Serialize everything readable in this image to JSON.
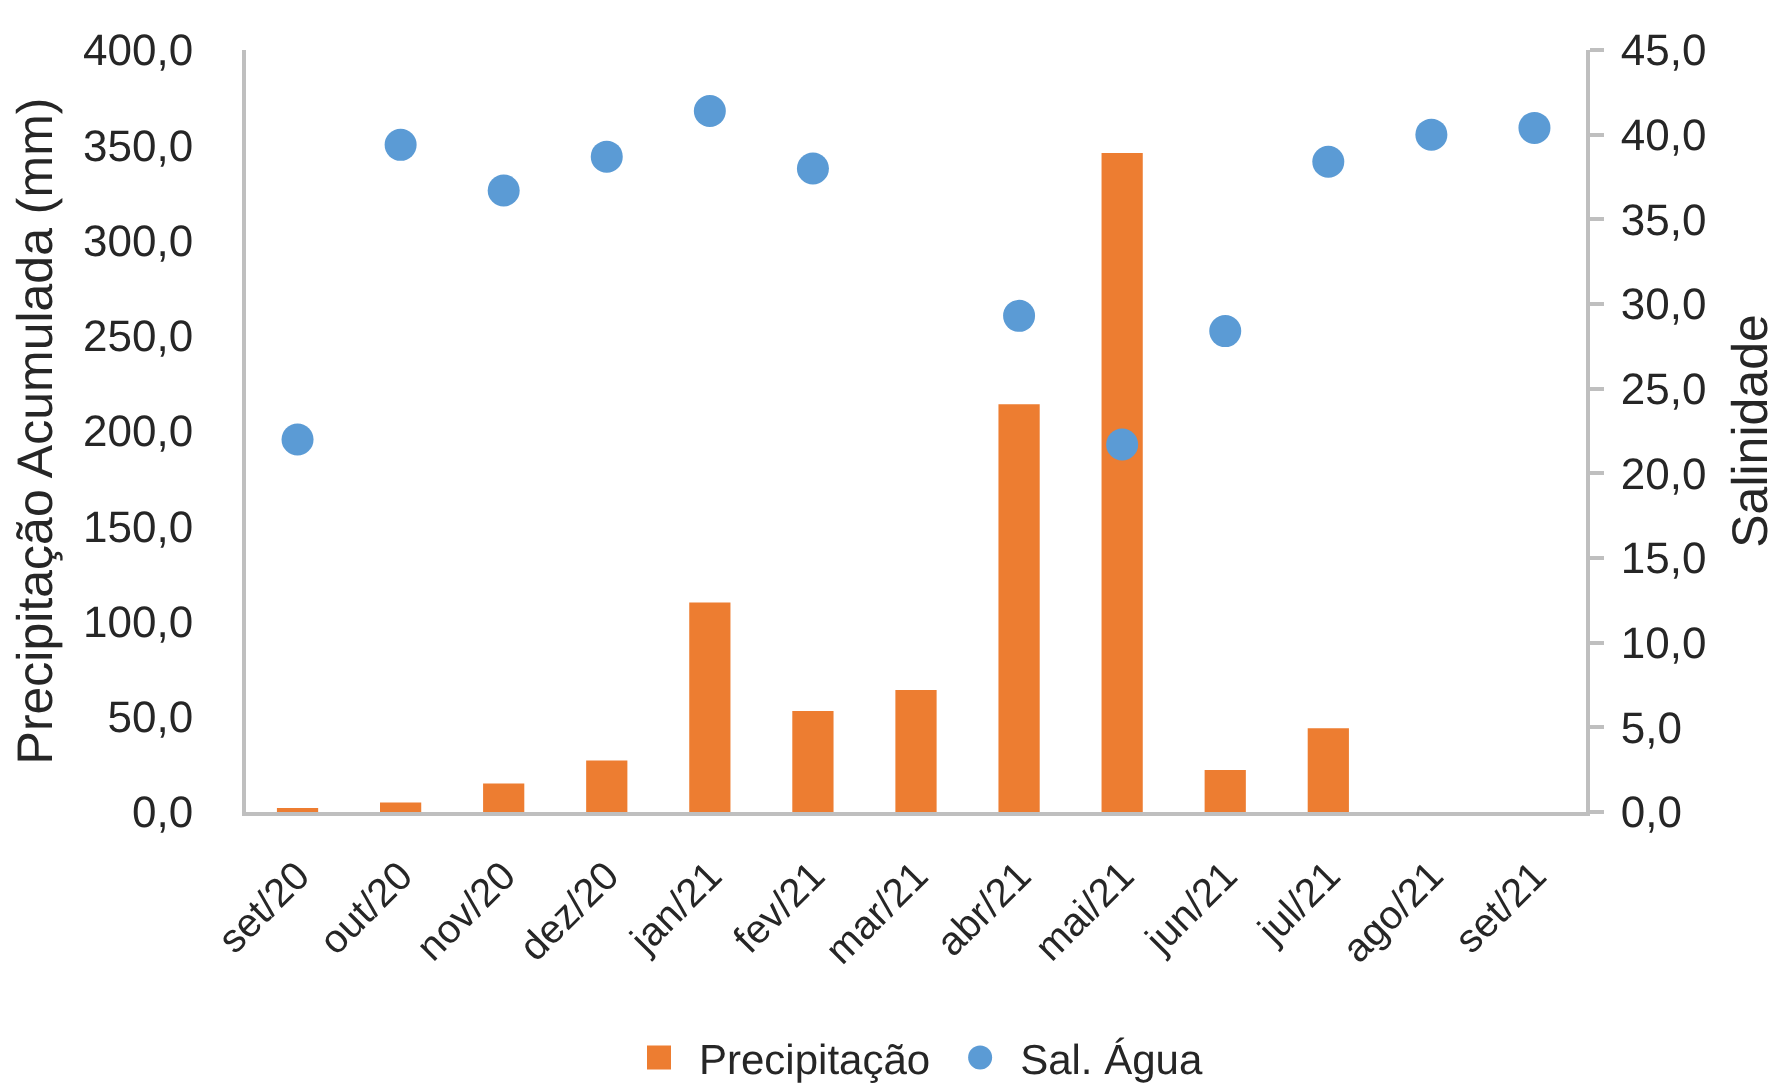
{
  "chart_data": {
    "type": "bar",
    "categories": [
      "set/20",
      "out/20",
      "nov/20",
      "dez/20",
      "jan/21",
      "fev/21",
      "mar/21",
      "abr/21",
      "mai/21",
      "jun/21",
      "jul/21",
      "ago/21",
      "set/21"
    ],
    "series": [
      {
        "name": "Precipitação",
        "color": "#ed7d31",
        "values": [
          2,
          5,
          15,
          27,
          110,
          53,
          64,
          214,
          346,
          22,
          44,
          null,
          null
        ]
      },
      {
        "name": "Sal. Água",
        "type": "scatter",
        "axis": "y2",
        "color": "#5b9bd5",
        "values": [
          22.0,
          39.4,
          36.7,
          38.7,
          41.4,
          38.0,
          null,
          29.3,
          21.7,
          28.4,
          38.4,
          40.0,
          40.4
        ]
      }
    ],
    "ylabel": "Precipitação Acumulada (mm)",
    "y2label": "Salinidade",
    "ylim": [
      0,
      400
    ],
    "yticks": [
      {
        "value": 0,
        "label": "0,0"
      },
      {
        "value": 50,
        "label": "50,0"
      },
      {
        "value": 100,
        "label": "100,0"
      },
      {
        "value": 150,
        "label": "150,0"
      },
      {
        "value": 200,
        "label": "200,0"
      },
      {
        "value": 250,
        "label": "250,0"
      },
      {
        "value": 300,
        "label": "300,0"
      },
      {
        "value": 350,
        "label": "350,0"
      },
      {
        "value": 400,
        "label": "400,0"
      }
    ],
    "y2lim": [
      0,
      45
    ],
    "y2ticks": [
      {
        "value": 0,
        "label": "0,0"
      },
      {
        "value": 5,
        "label": "5,0"
      },
      {
        "value": 10,
        "label": "10,0"
      },
      {
        "value": 15,
        "label": "15,0"
      },
      {
        "value": 20,
        "label": "20,0"
      },
      {
        "value": 25,
        "label": "25,0"
      },
      {
        "value": 30,
        "label": "30,0"
      },
      {
        "value": 35,
        "label": "35,0"
      },
      {
        "value": 40,
        "label": "40,0"
      },
      {
        "value": 45,
        "label": "45,0"
      }
    ],
    "grid": false,
    "legend": "bottom",
    "marker": "circle"
  }
}
